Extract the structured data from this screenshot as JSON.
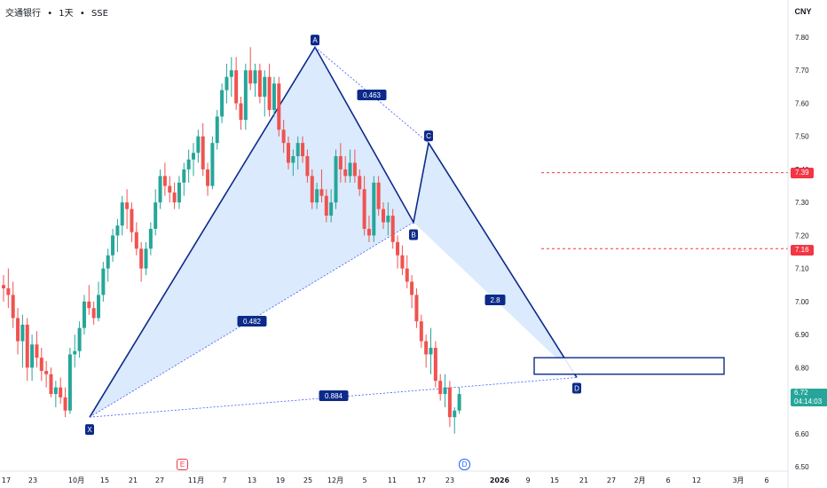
{
  "header": {
    "symbol": "交通银行",
    "interval": "1天",
    "exchange": "SSE",
    "sep1": "•",
    "sep2": "•"
  },
  "currency": "CNY",
  "price_labels": {
    "level1": "7.39",
    "level2": "7.16",
    "last_price": "6.72",
    "countdown": "04:14:03"
  },
  "events": {
    "earnings": "E",
    "dividend": "D"
  },
  "colors": {
    "up": "#26a69a",
    "down": "#ef5350",
    "pattern_line": "#0d2a8a",
    "pattern_fill": "#cfe3fb",
    "level": "#f23645"
  },
  "chart_data": {
    "type": "candlestick",
    "y_ticks": [
      "7.80",
      "7.70",
      "7.60",
      "7.50",
      "7.40",
      "7.30",
      "7.20",
      "7.10",
      "7.00",
      "6.90",
      "6.80",
      "6.70",
      "6.60",
      "6.50"
    ],
    "ylim": [
      6.46,
      7.88
    ],
    "x_ticks": [
      "17",
      "23",
      "10月",
      "15",
      "21",
      "27",
      "11月",
      "7",
      "13",
      "19",
      "25",
      "12月",
      "5",
      "11",
      "17",
      "23",
      "2026",
      "9",
      "15",
      "21",
      "27",
      "2月",
      "6",
      "12",
      "3月",
      "6"
    ],
    "pattern": {
      "type": "harmonic",
      "points": [
        {
          "label": "X",
          "value": 6.65
        },
        {
          "label": "A",
          "value": 7.77
        },
        {
          "label": "B",
          "value": 7.24
        },
        {
          "label": "C",
          "value": 7.48
        },
        {
          "label": "D",
          "value": 6.77
        }
      ],
      "ratios": {
        "xb": "0.482",
        "ac": "0.463",
        "bd": "2.8",
        "xd": "0.884"
      }
    },
    "levels": [
      7.39,
      7.16
    ],
    "zone": {
      "top": 6.83,
      "bottom": 6.78
    },
    "candles": [
      [
        7.05,
        7.08,
        7.0,
        7.04
      ],
      [
        7.04,
        7.1,
        6.98,
        7.02
      ],
      [
        7.02,
        7.06,
        6.92,
        6.95
      ],
      [
        6.95,
        6.98,
        6.84,
        6.88
      ],
      [
        6.88,
        6.96,
        6.8,
        6.93
      ],
      [
        6.93,
        6.95,
        6.76,
        6.8
      ],
      [
        6.8,
        6.9,
        6.76,
        6.87
      ],
      [
        6.87,
        6.91,
        6.8,
        6.83
      ],
      [
        6.83,
        6.86,
        6.76,
        6.79
      ],
      [
        6.79,
        6.82,
        6.74,
        6.78
      ],
      [
        6.78,
        6.8,
        6.71,
        6.72
      ],
      [
        6.72,
        6.76,
        6.68,
        6.74
      ],
      [
        6.74,
        6.77,
        6.69,
        6.71
      ],
      [
        6.71,
        6.74,
        6.65,
        6.67
      ],
      [
        6.67,
        6.86,
        6.66,
        6.84
      ],
      [
        6.84,
        6.9,
        6.8,
        6.85
      ],
      [
        6.85,
        6.94,
        6.83,
        6.92
      ],
      [
        6.92,
        7.02,
        6.9,
        7.0
      ],
      [
        7.0,
        7.05,
        6.96,
        6.98
      ],
      [
        6.98,
        7.0,
        6.93,
        6.95
      ],
      [
        6.95,
        7.06,
        6.94,
        7.02
      ],
      [
        7.02,
        7.12,
        7.0,
        7.1
      ],
      [
        7.1,
        7.16,
        7.06,
        7.14
      ],
      [
        7.14,
        7.22,
        7.12,
        7.2
      ],
      [
        7.2,
        7.25,
        7.15,
        7.23
      ],
      [
        7.23,
        7.32,
        7.2,
        7.3
      ],
      [
        7.3,
        7.34,
        7.22,
        7.28
      ],
      [
        7.28,
        7.3,
        7.18,
        7.21
      ],
      [
        7.21,
        7.24,
        7.14,
        7.16
      ],
      [
        7.16,
        7.18,
        7.06,
        7.1
      ],
      [
        7.1,
        7.18,
        7.08,
        7.16
      ],
      [
        7.16,
        7.24,
        7.14,
        7.22
      ],
      [
        7.22,
        7.34,
        7.2,
        7.3
      ],
      [
        7.3,
        7.4,
        7.28,
        7.38
      ],
      [
        7.38,
        7.42,
        7.32,
        7.35
      ],
      [
        7.35,
        7.38,
        7.3,
        7.33
      ],
      [
        7.33,
        7.36,
        7.28,
        7.3
      ],
      [
        7.3,
        7.38,
        7.28,
        7.36
      ],
      [
        7.36,
        7.42,
        7.32,
        7.4
      ],
      [
        7.4,
        7.46,
        7.36,
        7.43
      ],
      [
        7.43,
        7.48,
        7.38,
        7.45
      ],
      [
        7.45,
        7.52,
        7.42,
        7.5
      ],
      [
        7.5,
        7.54,
        7.38,
        7.4
      ],
      [
        7.4,
        7.42,
        7.32,
        7.35
      ],
      [
        7.35,
        7.5,
        7.34,
        7.48
      ],
      [
        7.48,
        7.58,
        7.46,
        7.56
      ],
      [
        7.56,
        7.66,
        7.54,
        7.64
      ],
      [
        7.64,
        7.72,
        7.6,
        7.68
      ],
      [
        7.68,
        7.74,
        7.62,
        7.7
      ],
      [
        7.7,
        7.74,
        7.58,
        7.6
      ],
      [
        7.6,
        7.62,
        7.52,
        7.55
      ],
      [
        7.55,
        7.72,
        7.52,
        7.7
      ],
      [
        7.7,
        7.77,
        7.64,
        7.66
      ],
      [
        7.66,
        7.72,
        7.62,
        7.7
      ],
      [
        7.7,
        7.72,
        7.6,
        7.62
      ],
      [
        7.62,
        7.7,
        7.56,
        7.68
      ],
      [
        7.68,
        7.72,
        7.56,
        7.58
      ],
      [
        7.58,
        7.68,
        7.56,
        7.66
      ],
      [
        7.66,
        7.68,
        7.5,
        7.52
      ],
      [
        7.52,
        7.55,
        7.45,
        7.48
      ],
      [
        7.48,
        7.5,
        7.4,
        7.42
      ],
      [
        7.42,
        7.46,
        7.38,
        7.44
      ],
      [
        7.44,
        7.5,
        7.4,
        7.48
      ],
      [
        7.48,
        7.5,
        7.42,
        7.44
      ],
      [
        7.44,
        7.46,
        7.36,
        7.38
      ],
      [
        7.38,
        7.4,
        7.28,
        7.3
      ],
      [
        7.3,
        7.36,
        7.28,
        7.34
      ],
      [
        7.34,
        7.4,
        7.3,
        7.32
      ],
      [
        7.32,
        7.34,
        7.24,
        7.26
      ],
      [
        7.26,
        7.34,
        7.24,
        7.3
      ],
      [
        7.3,
        7.46,
        7.28,
        7.44
      ],
      [
        7.44,
        7.48,
        7.36,
        7.4
      ],
      [
        7.4,
        7.44,
        7.36,
        7.38
      ],
      [
        7.38,
        7.46,
        7.36,
        7.42
      ],
      [
        7.42,
        7.46,
        7.36,
        7.38
      ],
      [
        7.38,
        7.4,
        7.32,
        7.34
      ],
      [
        7.34,
        7.38,
        7.2,
        7.22
      ],
      [
        7.22,
        7.26,
        7.18,
        7.2
      ],
      [
        7.2,
        7.38,
        7.18,
        7.36
      ],
      [
        7.36,
        7.38,
        7.26,
        7.28
      ],
      [
        7.28,
        7.3,
        7.22,
        7.24
      ],
      [
        7.24,
        7.3,
        7.2,
        7.26
      ],
      [
        7.26,
        7.28,
        7.16,
        7.18
      ],
      [
        7.18,
        7.2,
        7.1,
        7.14
      ],
      [
        7.14,
        7.17,
        7.08,
        7.1
      ],
      [
        7.1,
        7.14,
        7.04,
        7.06
      ],
      [
        7.06,
        7.08,
        6.98,
        7.02
      ],
      [
        7.02,
        7.04,
        6.92,
        6.94
      ],
      [
        6.94,
        6.96,
        6.86,
        6.88
      ],
      [
        6.88,
        6.9,
        6.8,
        6.84
      ],
      [
        6.84,
        6.92,
        6.78,
        6.86
      ],
      [
        6.86,
        6.88,
        6.74,
        6.76
      ],
      [
        6.76,
        6.78,
        6.7,
        6.72
      ],
      [
        6.72,
        6.78,
        6.68,
        6.74
      ],
      [
        6.74,
        6.76,
        6.62,
        6.65
      ],
      [
        6.65,
        6.68,
        6.6,
        6.67
      ],
      [
        6.67,
        6.74,
        6.66,
        6.72
      ]
    ]
  }
}
